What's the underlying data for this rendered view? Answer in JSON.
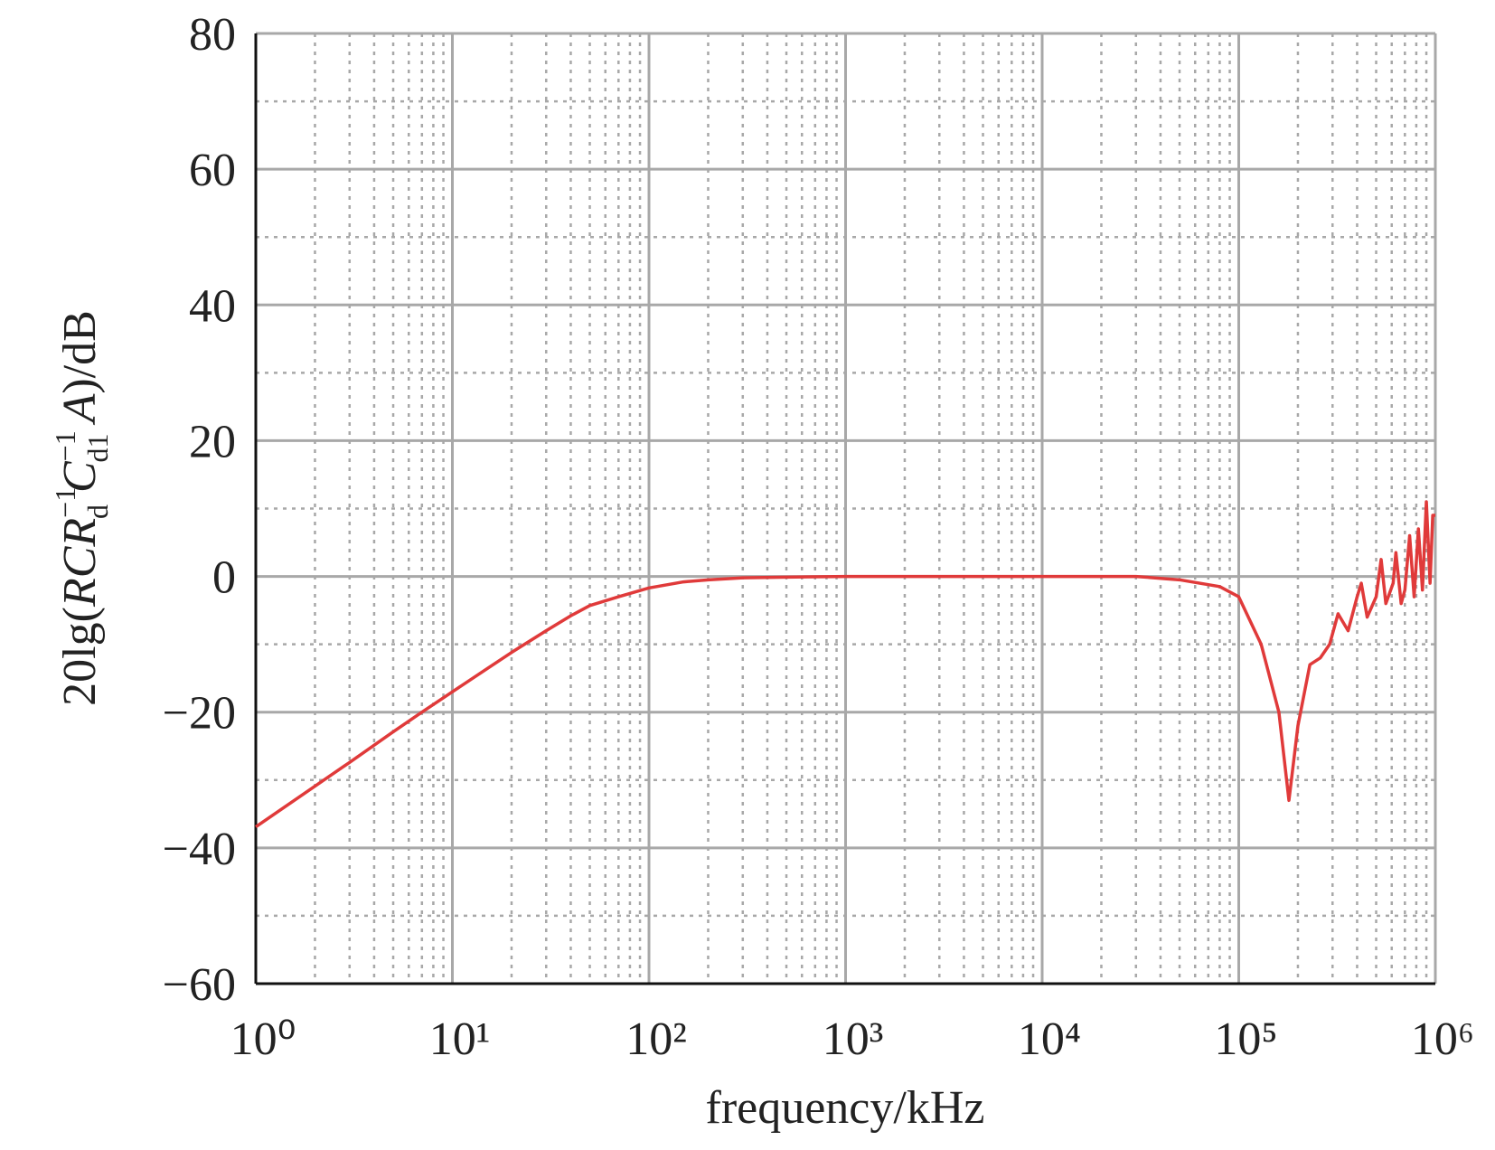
{
  "chart_data": {
    "type": "line",
    "xlabel": "frequency/kHz",
    "ylabel_parts": [
      "20lg(",
      "RCR",
      "−1",
      "d",
      " C",
      "−1",
      "d1",
      " A",
      ")/dB"
    ],
    "x": [
      1,
      2,
      3,
      5,
      7,
      10,
      15,
      20,
      30,
      40,
      50,
      70,
      100,
      150,
      200,
      300,
      500,
      1000,
      10000,
      30000,
      50000,
      80000,
      100000,
      130000,
      160000,
      180000,
      200000,
      230000,
      260000,
      290000,
      320000,
      360000,
      400000,
      420000,
      450000,
      500000,
      530000,
      560000,
      610000,
      630000,
      670000,
      700000,
      740000,
      780000,
      820000,
      860000,
      900000,
      940000,
      970000,
      1000000
    ],
    "series": [
      {
        "color": "#e03a3a",
        "values": [
          -36.9,
          -30.9,
          -27.4,
          -22.9,
          -20.0,
          -17.0,
          -13.6,
          -11.2,
          -8.0,
          -5.8,
          -4.3,
          -3.0,
          -1.7,
          -0.8,
          -0.5,
          -0.2,
          -0.1,
          0,
          0,
          0,
          -0.5,
          -1.5,
          -3,
          -10,
          -20,
          -33,
          -22,
          -13,
          -12,
          -10,
          -5.5,
          -8,
          -3,
          -1,
          -6,
          -3,
          2.5,
          -4,
          -1,
          3.5,
          -4,
          -2,
          6,
          -3,
          7,
          -2,
          11,
          -1,
          9,
          9
        ]
      }
    ],
    "xscale": "log",
    "xlim": [
      1,
      1000000
    ],
    "xticks": [
      {
        "value": 1,
        "label": "10⁰"
      },
      {
        "value": 10,
        "label": "10¹"
      },
      {
        "value": 100,
        "label": "10²"
      },
      {
        "value": 1000,
        "label": "10³"
      },
      {
        "value": 10000,
        "label": "10⁴"
      },
      {
        "value": 100000,
        "label": "10⁵"
      },
      {
        "value": 1000000,
        "label": "10⁶"
      }
    ],
    "xminor_ticks": [
      2,
      3,
      4,
      5,
      6,
      7,
      8,
      9,
      20,
      30,
      40,
      50,
      60,
      70,
      80,
      90,
      200,
      300,
      400,
      500,
      600,
      700,
      800,
      900,
      2000,
      3000,
      4000,
      5000,
      6000,
      7000,
      8000,
      9000,
      20000,
      30000,
      40000,
      50000,
      60000,
      70000,
      80000,
      90000,
      200000,
      300000,
      400000,
      500000,
      600000,
      700000,
      800000,
      900000
    ],
    "ylim": [
      -60,
      80
    ],
    "yticks": [
      {
        "value": -60,
        "label": "−60"
      },
      {
        "value": -40,
        "label": "−40"
      },
      {
        "value": -20,
        "label": "−20"
      },
      0,
      20,
      40,
      60,
      80
    ],
    "yminor_ticks": [
      -50,
      -30,
      -10,
      10,
      30,
      50,
      70
    ],
    "grid": true
  }
}
